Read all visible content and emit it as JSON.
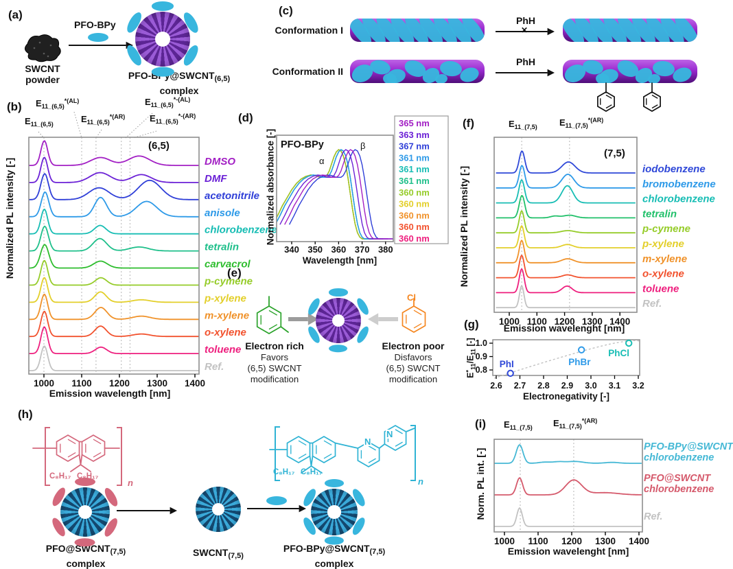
{
  "colors": {
    "tube_purple_light": "#bd63e6",
    "tube_purple_dark": "#4e0e78",
    "polymer_cyan": "#38b6de",
    "pfo_pink": "#d4687c",
    "bpy_teal": "#2fb3d4",
    "swirl_purple_a": "#9a5bd6",
    "swirl_purple_b": "#5c2594",
    "swirl_blue_a": "#3aa9d9",
    "swirl_blue_b": "#14486f",
    "mxylene_green": "#2ba32b",
    "chlorobenzene_orange": "#f5861f",
    "arrow_gray": "#9c9c9c",
    "arrow_lightgray": "#cdcdcd"
  },
  "panels": {
    "a": {
      "tag": "(a)",
      "reagent": "PFO-BPy",
      "source_label": "SWCNT\npowder",
      "product_name": "PFO-BPy@SWCNT",
      "product_sub": "(6,5)",
      "product_line2": "complex"
    },
    "b": {
      "tag": "(b)",
      "peak_labels": [
        {
          "base": "E",
          "sub": "11_(6,5)",
          "sup": ""
        },
        {
          "base": "E",
          "sub": "11_(6,5)",
          "sup": "*(AL)"
        },
        {
          "base": "E",
          "sub": "11_(6,5)",
          "sup": "*(AR)"
        },
        {
          "base": "E",
          "sub": "11_(6,5)",
          "sup": "*-(AL)"
        },
        {
          "base": "E",
          "sub": "11_(6,5)",
          "sup": "*-(AR)"
        }
      ]
    },
    "c": {
      "tag": "(c)",
      "row1_label": "Conformation I",
      "row2_label": "Conformation II",
      "arrow_label": "PhH",
      "cross": "✕"
    },
    "d": {
      "tag": "(d)",
      "title": "PFO-BPy",
      "alpha": "α",
      "beta": "β"
    },
    "e": {
      "tag": "(e)",
      "left_heading": "Electron rich",
      "left_body": "Favors\n(6,5) SWCNT\nmodification",
      "right_heading": "Electron poor",
      "right_body": "Disfavors\n(6,5) SWCNT\nmodification",
      "cl_label": "Cl"
    },
    "f": {
      "tag": "(f)",
      "peak_labels": [
        {
          "base": "E",
          "sub": "11_(7,5)",
          "sup": ""
        },
        {
          "base": "E",
          "sub": "11_(7,5)",
          "sup": "*(AR)"
        }
      ]
    },
    "g": {
      "tag": "(g)",
      "ylabel_parts": {
        "base1": "E",
        "sup1": "*",
        "sub1": "11",
        "slash": "/",
        "base2": "E",
        "sub2": "11",
        "unit": " [-]"
      }
    },
    "h": {
      "tag": "(h)",
      "alkyl": "C₈H₁₇",
      "n_sub": "n",
      "nitrogen": "N",
      "pfo_complex_name": "PFO@SWCNT",
      "pfo_complex_sub": "(7,5)",
      "pfo_complex_line2": "complex",
      "swcnt_name": "SWCNT",
      "swcnt_sub": "(7,5)",
      "bpy_complex_name": "PFO-BPy@SWCNT",
      "bpy_complex_sub": "(7,5)",
      "bpy_complex_line2": "complex"
    },
    "i": {
      "tag": "(i)",
      "peak_labels": [
        {
          "base": "E",
          "sub": "11_(7,5)",
          "sup": ""
        },
        {
          "base": "E",
          "sub": "11_(7,5)",
          "sup": "*(AR)"
        }
      ]
    }
  },
  "chart_data": [
    {
      "id": "b",
      "type": "line",
      "chirality": "(6,5)",
      "xlabel": "Emission wavelength [nm]",
      "ylabel": "Normalized PL intensity [-]",
      "xlim": [
        960,
        1410
      ],
      "xticks": [
        1000,
        1100,
        1200,
        1300,
        1400
      ],
      "dashed_nm": [
        1000,
        1100,
        1138,
        1205,
        1228
      ],
      "series": [
        {
          "name": "DMSO",
          "color": "#a21fc4",
          "peaks": [
            [
              1001,
              9,
              1.0
            ],
            [
              1150,
              26,
              0.32
            ],
            [
              1252,
              28,
              0.38
            ]
          ]
        },
        {
          "name": "DMF",
          "color": "#6b21d6",
          "peaks": [
            [
              1001,
              9,
              1.02
            ],
            [
              1149,
              27,
              0.4
            ],
            [
              1258,
              26,
              0.32
            ]
          ]
        },
        {
          "name": "acetonitrile",
          "color": "#2f3fd8",
          "peaks": [
            [
              1002,
              10,
              1.05
            ],
            [
              1146,
              27,
              0.48
            ],
            [
              1280,
              30,
              0.78
            ]
          ]
        },
        {
          "name": "anisole",
          "color": "#2e9ae8",
          "peaks": [
            [
              1003,
              10,
              1.0
            ],
            [
              1150,
              16,
              0.78
            ],
            [
              1272,
              27,
              0.62
            ]
          ]
        },
        {
          "name": "chlorobenzene",
          "color": "#17bdb4",
          "peaks": [
            [
              1001,
              9,
              1.0
            ],
            [
              1149,
              15,
              0.34
            ]
          ]
        },
        {
          "name": "tetralin",
          "color": "#1ebf8a",
          "peaks": [
            [
              1002,
              10,
              1.0
            ],
            [
              1148,
              18,
              0.5
            ],
            [
              1252,
              25,
              0.16
            ]
          ]
        },
        {
          "name": "carvacrol",
          "color": "#2dbd2d",
          "peaks": [
            [
              1002,
              11,
              0.95
            ],
            [
              1150,
              18,
              0.28
            ]
          ]
        },
        {
          "name": "p-cymene",
          "color": "#96cc2a",
          "peaks": [
            [
              1001,
              9,
              1.0
            ],
            [
              1151,
              15,
              0.3
            ]
          ]
        },
        {
          "name": "p-xylene",
          "color": "#e3cf2a",
          "peaks": [
            [
              1001,
              9,
              1.0
            ],
            [
              1150,
              15,
              0.42
            ],
            [
              1258,
              23,
              0.1
            ]
          ]
        },
        {
          "name": "m-xylene",
          "color": "#f0922a",
          "peaks": [
            [
              1001,
              9,
              1.02
            ],
            [
              1151,
              16,
              0.48
            ],
            [
              1258,
              23,
              0.13
            ]
          ]
        },
        {
          "name": "o-xylene",
          "color": "#f2522e",
          "peaks": [
            [
              1001,
              9,
              1.02
            ],
            [
              1150,
              15,
              0.42
            ],
            [
              1258,
              22,
              0.1
            ]
          ]
        },
        {
          "name": "toluene",
          "color": "#ee1f7e",
          "peaks": [
            [
              1001,
              9,
              1.08
            ],
            [
              1151,
              15,
              0.26
            ]
          ]
        },
        {
          "name": "Ref.",
          "color": "#c2c2c2",
          "peaks": [
            [
              1001,
              9,
              1.0
            ]
          ]
        }
      ]
    },
    {
      "id": "d",
      "type": "line",
      "xlabel": "Wavelength [nm]",
      "ylabel": "Normalized absorbance [-]",
      "xlim": [
        334,
        385
      ],
      "xticks": [
        340,
        350,
        360,
        370,
        380
      ],
      "template": [
        [
          334,
          0.16
        ],
        [
          336,
          0.26
        ],
        [
          338,
          0.37
        ],
        [
          340,
          0.46
        ],
        [
          342,
          0.55
        ],
        [
          344,
          0.62
        ],
        [
          346,
          0.67
        ],
        [
          348,
          0.7
        ],
        [
          350,
          0.715
        ],
        [
          352,
          0.71
        ],
        [
          354,
          0.69
        ],
        [
          356,
          0.69
        ],
        [
          357,
          0.71
        ],
        [
          358,
          0.76
        ],
        [
          359,
          0.84
        ],
        [
          360,
          0.92
        ],
        [
          361,
          0.975
        ],
        [
          362,
          1.0
        ],
        [
          363,
          0.985
        ],
        [
          364,
          0.93
        ],
        [
          365,
          0.83
        ],
        [
          366,
          0.68
        ],
        [
          367,
          0.5
        ],
        [
          368,
          0.32
        ],
        [
          369,
          0.17
        ],
        [
          370,
          0.07
        ],
        [
          371,
          0.02
        ],
        [
          372,
          0.0
        ],
        [
          380,
          0.0
        ]
      ],
      "series": [
        {
          "label": "365 nm",
          "lambda": 365,
          "color": "#a21fc4"
        },
        {
          "label": "363 nm",
          "lambda": 363,
          "color": "#6b21d6"
        },
        {
          "label": "367 nm",
          "lambda": 367,
          "color": "#2f3fd8"
        },
        {
          "label": "361 nm",
          "lambda": 361,
          "color": "#2e9ae8"
        },
        {
          "label": "361 nm",
          "lambda": 361,
          "color": "#17bdb4"
        },
        {
          "label": "361 nm",
          "lambda": 361,
          "color": "#1ebf8a"
        },
        {
          "label": "360 nm",
          "lambda": 360,
          "color": "#96cc2a"
        },
        {
          "label": "360 nm",
          "lambda": 360,
          "color": "#e3cf2a"
        },
        {
          "label": "360 nm",
          "lambda": 360,
          "color": "#f0922a"
        },
        {
          "label": "360 nm",
          "lambda": 360,
          "color": "#f2522e"
        },
        {
          "label": "360 nm",
          "lambda": 360,
          "color": "#ee1f7e"
        }
      ]
    },
    {
      "id": "f",
      "type": "line",
      "chirality": "(7,5)",
      "xlabel": "Emission wavelenght [nm]",
      "ylabel": "Normalized PL intensity [-]",
      "xlim": [
        952,
        1458
      ],
      "xticks": [
        1000,
        1100,
        1200,
        1300,
        1400
      ],
      "dashed_nm": [
        1045,
        1218
      ],
      "series": [
        {
          "name": "iodobenzene",
          "color": "#2f48d8",
          "peaks": [
            [
              1046,
              10,
              1.0
            ],
            [
              1214,
              24,
              0.5
            ]
          ]
        },
        {
          "name": "bromobenzene",
          "color": "#2e9ae8",
          "peaks": [
            [
              1046,
              10,
              1.02
            ],
            [
              1212,
              22,
              0.62
            ]
          ]
        },
        {
          "name": "chlorobenzene",
          "color": "#17bdb4",
          "peaks": [
            [
              1045,
              10,
              1.05
            ],
            [
              1210,
              20,
              0.78
            ]
          ]
        },
        {
          "name": "tetralin",
          "color": "#21c06a",
          "peaks": [
            [
              1046,
              10,
              1.02
            ],
            [
              1165,
              16,
              0.08
            ],
            [
              1218,
              22,
              0.12
            ]
          ]
        },
        {
          "name": "p-cymene",
          "color": "#96cc2a",
          "peaks": [
            [
              1045,
              9,
              1.0
            ],
            [
              1212,
              24,
              0.1
            ]
          ]
        },
        {
          "name": "p-xylene",
          "color": "#e3cf2a",
          "peaks": [
            [
              1045,
              9,
              1.0
            ],
            [
              1210,
              20,
              0.15
            ]
          ]
        },
        {
          "name": "m-xylene",
          "color": "#f0922a",
          "peaks": [
            [
              1045,
              9,
              1.02
            ],
            [
              1211,
              22,
              0.18
            ]
          ]
        },
        {
          "name": "o-xylene",
          "color": "#f2522e",
          "peaks": [
            [
              1045,
              9,
              1.02
            ],
            [
              1211,
              20,
              0.13
            ]
          ]
        },
        {
          "name": "toluene",
          "color": "#ee1f7e",
          "peaks": [
            [
              1045,
              9,
              1.08
            ],
            [
              1209,
              18,
              0.3
            ]
          ]
        },
        {
          "name": "Ref.",
          "color": "#c2c2c2",
          "peaks": [
            [
              1045,
              8,
              1.0
            ]
          ]
        }
      ]
    },
    {
      "id": "g",
      "type": "scatter",
      "xlabel": "Electronegativity [-]",
      "ylabel": "E*11/E11 [-]",
      "xlim": [
        2.6,
        3.25
      ],
      "ylim": [
        0.75,
        1.02
      ],
      "xticks": [
        2.6,
        2.7,
        2.8,
        2.9,
        3.0,
        3.1,
        3.2
      ],
      "yticks": [
        1.0,
        0.9,
        0.8
      ],
      "points": [
        {
          "label": "PhI",
          "x": 2.66,
          "y": 0.775,
          "color": "#2f48d8"
        },
        {
          "label": "PhBr",
          "x": 2.96,
          "y": 0.95,
          "color": "#2e9ae8"
        },
        {
          "label": "PhCl",
          "x": 3.16,
          "y": 1.0,
          "color": "#17bdb4"
        }
      ],
      "trend": "dashed"
    },
    {
      "id": "i",
      "type": "line",
      "xlabel": "Emission wavelenght [nm]",
      "ylabel": "Norm. PL int. [-]",
      "xlim": [
        970,
        1408
      ],
      "xticks": [
        1000,
        1100,
        1200,
        1300,
        1400
      ],
      "dashed_nm": [
        1047,
        1206
      ],
      "series": [
        {
          "name": "PFO-BPy@SWCNT",
          "sub": "chlorobenzene",
          "color": "#45b8d5",
          "peaks": [
            [
              1045,
              10,
              1.0
            ],
            [
              1118,
              16,
              0.06
            ],
            [
              1160,
              18,
              0.08
            ],
            [
              1210,
              24,
              0.1
            ],
            [
              1320,
              20,
              0.05
            ]
          ]
        },
        {
          "name": "PFO@SWCNT",
          "sub": "chlorobenzene",
          "color": "#d5596b",
          "peaks": [
            [
              1045,
              9,
              0.92
            ],
            [
              1206,
              24,
              0.8
            ],
            [
              1298,
              40,
              0.12
            ]
          ]
        },
        {
          "name": "Ref.",
          "sub": "",
          "color": "#c2c2c2",
          "peaks": [
            [
              1045,
              8,
              1.0
            ]
          ]
        }
      ]
    }
  ]
}
